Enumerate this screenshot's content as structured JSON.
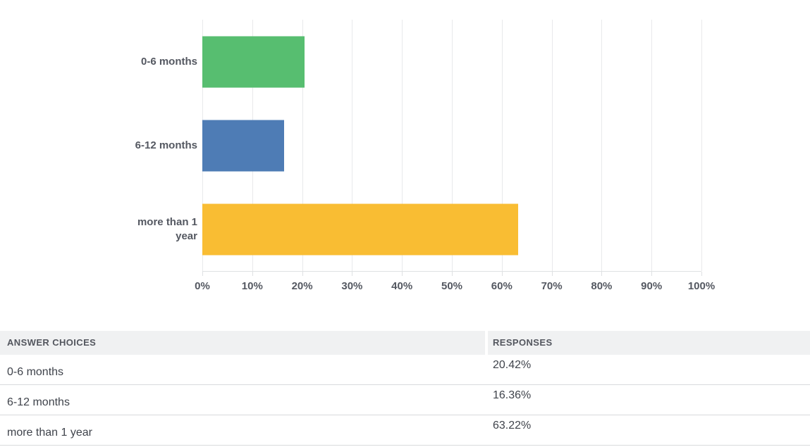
{
  "chart_data": {
    "type": "bar",
    "orientation": "horizontal",
    "title": "",
    "xlabel": "",
    "ylabel": "",
    "categories": [
      "0-6 months",
      "6-12 months",
      "more than 1 year"
    ],
    "values": [
      20.42,
      16.36,
      63.22
    ],
    "bar_colors": [
      "#57be70",
      "#4e7cb5",
      "#f9bd33"
    ],
    "x_ticks": [
      "0%",
      "10%",
      "20%",
      "30%",
      "40%",
      "50%",
      "60%",
      "70%",
      "80%",
      "90%",
      "100%"
    ],
    "xlim": [
      0,
      100
    ],
    "grid": true,
    "legend": false
  },
  "table": {
    "headers": [
      "ANSWER CHOICES",
      "RESPONSES"
    ],
    "rows": [
      {
        "choice": "0-6 months",
        "response": "20.42%"
      },
      {
        "choice": "6-12 months",
        "response": "16.36%"
      },
      {
        "choice": "more than 1 year",
        "response": "63.22%"
      }
    ]
  },
  "colors": {
    "gridline": "#e8e9eb",
    "axis_text": "#545861",
    "header_bg": "#f0f1f2",
    "row_text": "#3f434b",
    "row_border": "#d8dadc"
  }
}
